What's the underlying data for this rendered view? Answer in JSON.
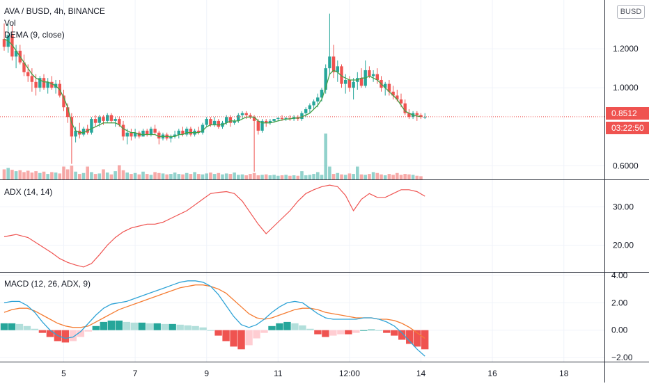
{
  "header": {
    "symbol_line": "AVA / BUSD, 4h, BINANCE",
    "vol_label": "Vol",
    "dema_label": "DEMA (9, close)",
    "currency_badge": "BUSD"
  },
  "price_badges": {
    "last_price": "0.8512",
    "countdown": "03:22:50"
  },
  "colors": {
    "up": "#26a69a",
    "down": "#ef5350",
    "dema": "#43a047",
    "adx": "#ef5350",
    "macd_line": "#2fa3d6",
    "signal_line": "#f57c32",
    "hist_up_strong": "#26a69a",
    "hist_up_weak": "#b2dfdb",
    "hist_down_strong": "#ef5350",
    "hist_down_weak": "#ffcdd2",
    "grid": "#f0f3fa",
    "axis_text": "#131722"
  },
  "chart_data": [
    {
      "type": "candlestick",
      "panel": "price",
      "title": "AVA / BUSD, 4h, BINANCE",
      "ylim": [
        0.53,
        1.45
      ],
      "y_ticks": [
        "1.2000",
        "1.0000",
        "0.6000"
      ],
      "x_ticks": [
        "5",
        "7",
        "9",
        "11",
        "12:00",
        "14",
        "16",
        "18"
      ],
      "x_tick_positions": [
        4,
        7,
        10,
        13,
        16,
        19,
        22,
        25
      ],
      "candles_per_day": 6,
      "last_price": 0.8512,
      "candles": [
        {
          "o": 1.25,
          "h": 1.33,
          "l": 1.19,
          "c": 1.21
        },
        {
          "o": 1.21,
          "h": 1.33,
          "l": 1.18,
          "c": 1.27
        },
        {
          "o": 1.27,
          "h": 1.32,
          "l": 1.14,
          "c": 1.16
        },
        {
          "o": 1.16,
          "h": 1.22,
          "l": 1.1,
          "c": 1.19
        },
        {
          "o": 1.19,
          "h": 1.22,
          "l": 1.12,
          "c": 1.13
        },
        {
          "o": 1.13,
          "h": 1.17,
          "l": 1.06,
          "c": 1.08
        },
        {
          "o": 1.08,
          "h": 1.12,
          "l": 1.03,
          "c": 1.06
        },
        {
          "o": 1.06,
          "h": 1.1,
          "l": 0.98,
          "c": 1.03
        },
        {
          "o": 1.03,
          "h": 1.07,
          "l": 0.96,
          "c": 1.0
        },
        {
          "o": 1.0,
          "h": 1.06,
          "l": 0.98,
          "c": 1.05
        },
        {
          "o": 1.05,
          "h": 1.07,
          "l": 0.99,
          "c": 1.0
        },
        {
          "o": 1.0,
          "h": 1.05,
          "l": 0.97,
          "c": 1.03
        },
        {
          "o": 1.03,
          "h": 1.06,
          "l": 0.99,
          "c": 1.0
        },
        {
          "o": 1.0,
          "h": 1.04,
          "l": 0.97,
          "c": 1.02
        },
        {
          "o": 1.02,
          "h": 1.04,
          "l": 0.95,
          "c": 0.96
        },
        {
          "o": 0.96,
          "h": 0.99,
          "l": 0.88,
          "c": 0.9
        },
        {
          "o": 0.9,
          "h": 0.92,
          "l": 0.82,
          "c": 0.85
        },
        {
          "o": 0.85,
          "h": 0.87,
          "l": 0.61,
          "c": 0.75
        },
        {
          "o": 0.75,
          "h": 0.8,
          "l": 0.72,
          "c": 0.78
        },
        {
          "o": 0.78,
          "h": 0.82,
          "l": 0.74,
          "c": 0.76
        },
        {
          "o": 0.76,
          "h": 0.8,
          "l": 0.75,
          "c": 0.79
        },
        {
          "o": 0.79,
          "h": 0.81,
          "l": 0.76,
          "c": 0.77
        },
        {
          "o": 0.77,
          "h": 0.85,
          "l": 0.76,
          "c": 0.84
        },
        {
          "o": 0.84,
          "h": 0.86,
          "l": 0.8,
          "c": 0.82
        },
        {
          "o": 0.82,
          "h": 0.86,
          "l": 0.8,
          "c": 0.85
        },
        {
          "o": 0.85,
          "h": 0.86,
          "l": 0.81,
          "c": 0.83
        },
        {
          "o": 0.83,
          "h": 0.87,
          "l": 0.82,
          "c": 0.86
        },
        {
          "o": 0.86,
          "h": 0.87,
          "l": 0.82,
          "c": 0.83
        },
        {
          "o": 0.83,
          "h": 0.85,
          "l": 0.8,
          "c": 0.84
        },
        {
          "o": 0.84,
          "h": 0.85,
          "l": 0.8,
          "c": 0.81
        },
        {
          "o": 0.81,
          "h": 0.83,
          "l": 0.73,
          "c": 0.75
        },
        {
          "o": 0.75,
          "h": 0.79,
          "l": 0.71,
          "c": 0.77
        },
        {
          "o": 0.77,
          "h": 0.79,
          "l": 0.73,
          "c": 0.75
        },
        {
          "o": 0.75,
          "h": 0.79,
          "l": 0.74,
          "c": 0.77
        },
        {
          "o": 0.77,
          "h": 0.78,
          "l": 0.74,
          "c": 0.75
        },
        {
          "o": 0.75,
          "h": 0.79,
          "l": 0.75,
          "c": 0.78
        },
        {
          "o": 0.78,
          "h": 0.79,
          "l": 0.75,
          "c": 0.76
        },
        {
          "o": 0.76,
          "h": 0.8,
          "l": 0.75,
          "c": 0.79
        },
        {
          "o": 0.79,
          "h": 0.81,
          "l": 0.76,
          "c": 0.77
        },
        {
          "o": 0.77,
          "h": 0.78,
          "l": 0.71,
          "c": 0.74
        },
        {
          "o": 0.74,
          "h": 0.77,
          "l": 0.73,
          "c": 0.76
        },
        {
          "o": 0.76,
          "h": 0.77,
          "l": 0.73,
          "c": 0.74
        },
        {
          "o": 0.74,
          "h": 0.76,
          "l": 0.72,
          "c": 0.75
        },
        {
          "o": 0.75,
          "h": 0.78,
          "l": 0.74,
          "c": 0.76
        },
        {
          "o": 0.76,
          "h": 0.79,
          "l": 0.74,
          "c": 0.78
        },
        {
          "o": 0.78,
          "h": 0.8,
          "l": 0.75,
          "c": 0.76
        },
        {
          "o": 0.76,
          "h": 0.8,
          "l": 0.75,
          "c": 0.79
        },
        {
          "o": 0.79,
          "h": 0.8,
          "l": 0.75,
          "c": 0.76
        },
        {
          "o": 0.76,
          "h": 0.79,
          "l": 0.75,
          "c": 0.78
        },
        {
          "o": 0.78,
          "h": 0.8,
          "l": 0.76,
          "c": 0.77
        },
        {
          "o": 0.77,
          "h": 0.82,
          "l": 0.76,
          "c": 0.81
        },
        {
          "o": 0.81,
          "h": 0.85,
          "l": 0.8,
          "c": 0.84
        },
        {
          "o": 0.84,
          "h": 0.85,
          "l": 0.8,
          "c": 0.81
        },
        {
          "o": 0.81,
          "h": 0.85,
          "l": 0.8,
          "c": 0.83
        },
        {
          "o": 0.83,
          "h": 0.84,
          "l": 0.79,
          "c": 0.8
        },
        {
          "o": 0.8,
          "h": 0.83,
          "l": 0.79,
          "c": 0.82
        },
        {
          "o": 0.82,
          "h": 0.86,
          "l": 0.81,
          "c": 0.85
        },
        {
          "o": 0.85,
          "h": 0.86,
          "l": 0.8,
          "c": 0.82
        },
        {
          "o": 0.82,
          "h": 0.84,
          "l": 0.81,
          "c": 0.83
        },
        {
          "o": 0.83,
          "h": 0.87,
          "l": 0.82,
          "c": 0.86
        },
        {
          "o": 0.86,
          "h": 0.88,
          "l": 0.84,
          "c": 0.87
        },
        {
          "o": 0.87,
          "h": 0.88,
          "l": 0.84,
          "c": 0.86
        },
        {
          "o": 0.86,
          "h": 0.87,
          "l": 0.84,
          "c": 0.85
        },
        {
          "o": 0.85,
          "h": 0.86,
          "l": 0.57,
          "c": 0.83
        },
        {
          "o": 0.83,
          "h": 0.84,
          "l": 0.76,
          "c": 0.78
        },
        {
          "o": 0.78,
          "h": 0.84,
          "l": 0.77,
          "c": 0.83
        },
        {
          "o": 0.83,
          "h": 0.84,
          "l": 0.8,
          "c": 0.82
        },
        {
          "o": 0.82,
          "h": 0.84,
          "l": 0.81,
          "c": 0.83
        },
        {
          "o": 0.83,
          "h": 0.84,
          "l": 0.82,
          "c": 0.84
        },
        {
          "o": 0.84,
          "h": 0.85,
          "l": 0.83,
          "c": 0.845
        },
        {
          "o": 0.845,
          "h": 0.86,
          "l": 0.83,
          "c": 0.84
        },
        {
          "o": 0.84,
          "h": 0.85,
          "l": 0.83,
          "c": 0.845
        },
        {
          "o": 0.845,
          "h": 0.86,
          "l": 0.83,
          "c": 0.84
        },
        {
          "o": 0.84,
          "h": 0.86,
          "l": 0.83,
          "c": 0.85
        },
        {
          "o": 0.85,
          "h": 0.86,
          "l": 0.83,
          "c": 0.84
        },
        {
          "o": 0.84,
          "h": 0.88,
          "l": 0.83,
          "c": 0.87
        },
        {
          "o": 0.87,
          "h": 0.9,
          "l": 0.85,
          "c": 0.89
        },
        {
          "o": 0.89,
          "h": 0.92,
          "l": 0.87,
          "c": 0.91
        },
        {
          "o": 0.91,
          "h": 0.94,
          "l": 0.89,
          "c": 0.93
        },
        {
          "o": 0.93,
          "h": 0.97,
          "l": 0.9,
          "c": 0.95
        },
        {
          "o": 0.95,
          "h": 1.0,
          "l": 0.93,
          "c": 0.99
        },
        {
          "o": 0.99,
          "h": 1.12,
          "l": 0.97,
          "c": 1.1
        },
        {
          "o": 1.1,
          "h": 1.38,
          "l": 1.07,
          "c": 1.16
        },
        {
          "o": 1.16,
          "h": 1.22,
          "l": 1.05,
          "c": 1.08
        },
        {
          "o": 1.08,
          "h": 1.14,
          "l": 1.03,
          "c": 1.11
        },
        {
          "o": 1.11,
          "h": 1.12,
          "l": 1.0,
          "c": 1.02
        },
        {
          "o": 1.02,
          "h": 1.07,
          "l": 0.97,
          "c": 1.04
        },
        {
          "o": 1.04,
          "h": 1.06,
          "l": 0.98,
          "c": 1.0
        },
        {
          "o": 1.0,
          "h": 1.05,
          "l": 0.94,
          "c": 1.03
        },
        {
          "o": 1.03,
          "h": 1.08,
          "l": 0.99,
          "c": 1.05
        },
        {
          "o": 1.05,
          "h": 1.1,
          "l": 1.0,
          "c": 1.01
        },
        {
          "o": 1.01,
          "h": 1.14,
          "l": 1.0,
          "c": 1.09
        },
        {
          "o": 1.09,
          "h": 1.11,
          "l": 1.05,
          "c": 1.06
        },
        {
          "o": 1.06,
          "h": 1.09,
          "l": 1.03,
          "c": 1.07
        },
        {
          "o": 1.07,
          "h": 1.1,
          "l": 1.02,
          "c": 1.04
        },
        {
          "o": 1.04,
          "h": 1.06,
          "l": 0.98,
          "c": 1.0
        },
        {
          "o": 1.0,
          "h": 1.03,
          "l": 0.96,
          "c": 1.02
        },
        {
          "o": 1.02,
          "h": 1.04,
          "l": 0.96,
          "c": 0.98
        },
        {
          "o": 0.98,
          "h": 1.01,
          "l": 0.94,
          "c": 0.96
        },
        {
          "o": 0.96,
          "h": 0.99,
          "l": 0.93,
          "c": 0.94
        },
        {
          "o": 0.94,
          "h": 0.97,
          "l": 0.9,
          "c": 0.92
        },
        {
          "o": 0.92,
          "h": 0.94,
          "l": 0.86,
          "c": 0.87
        },
        {
          "o": 0.87,
          "h": 0.89,
          "l": 0.84,
          "c": 0.85
        },
        {
          "o": 0.85,
          "h": 0.88,
          "l": 0.84,
          "c": 0.87
        },
        {
          "o": 0.87,
          "h": 0.88,
          "l": 0.83,
          "c": 0.86
        },
        {
          "o": 0.86,
          "h": 0.87,
          "l": 0.84,
          "c": 0.85
        },
        {
          "o": 0.85,
          "h": 0.87,
          "l": 0.84,
          "c": 0.8512
        }
      ],
      "volume": [
        0.22,
        0.25,
        0.21,
        0.18,
        0.2,
        0.16,
        0.19,
        0.15,
        0.18,
        0.14,
        0.17,
        0.12,
        0.16,
        0.15,
        0.13,
        0.28,
        0.22,
        0.3,
        0.17,
        0.12,
        0.14,
        0.28,
        0.16,
        0.12,
        0.13,
        0.22,
        0.15,
        0.11,
        0.18,
        0.31,
        0.2,
        0.15,
        0.12,
        0.14,
        0.11,
        0.17,
        0.12,
        0.1,
        0.16,
        0.14,
        0.13,
        0.11,
        0.12,
        0.15,
        0.12,
        0.11,
        0.14,
        0.12,
        0.16,
        0.12,
        0.11,
        0.13,
        0.15,
        0.12,
        0.14,
        0.11,
        0.13,
        0.12,
        0.15,
        0.1,
        0.11,
        0.09,
        0.12,
        0.14,
        0.09,
        0.1,
        0.11,
        0.09,
        0.1,
        0.08,
        0.09,
        0.1,
        0.08,
        0.09,
        0.08,
        0.18,
        0.09,
        0.1,
        0.12,
        0.16,
        0.1,
        1.0,
        0.28,
        0.12,
        0.14,
        0.11,
        0.1,
        0.13,
        0.12,
        0.28,
        0.11,
        0.1,
        0.12,
        0.16,
        0.14,
        0.11,
        0.09,
        0.12,
        0.1,
        0.14,
        0.1,
        0.12,
        0.11,
        0.1,
        0.08,
        0.07
      ],
      "dema": [
        1.25,
        1.24,
        1.22,
        1.19,
        1.16,
        1.13,
        1.1,
        1.07,
        1.05,
        1.04,
        1.03,
        1.03,
        1.02,
        1.01,
        0.99,
        0.95,
        0.9,
        0.82,
        0.78,
        0.77,
        0.77,
        0.78,
        0.79,
        0.8,
        0.81,
        0.82,
        0.82,
        0.82,
        0.82,
        0.81,
        0.79,
        0.78,
        0.77,
        0.77,
        0.76,
        0.76,
        0.76,
        0.76,
        0.76,
        0.75,
        0.75,
        0.75,
        0.75,
        0.75,
        0.76,
        0.76,
        0.77,
        0.77,
        0.77,
        0.77,
        0.78,
        0.8,
        0.81,
        0.81,
        0.81,
        0.81,
        0.82,
        0.83,
        0.83,
        0.83,
        0.84,
        0.85,
        0.85,
        0.85,
        0.83,
        0.82,
        0.82,
        0.82,
        0.825,
        0.83,
        0.835,
        0.84,
        0.84,
        0.845,
        0.845,
        0.85,
        0.86,
        0.87,
        0.89,
        0.91,
        0.94,
        1.0,
        1.07,
        1.09,
        1.08,
        1.06,
        1.05,
        1.04,
        1.04,
        1.04,
        1.05,
        1.05,
        1.06,
        1.05,
        1.04,
        1.02,
        1.0,
        0.98,
        0.96,
        0.94,
        0.91,
        0.88,
        0.87,
        0.86,
        0.855,
        0.852
      ]
    },
    {
      "type": "line",
      "panel": "adx",
      "title": "ADX (14, 14)",
      "ylim": [
        13,
        37
      ],
      "y_ticks": [
        "30.00",
        "20.00"
      ],
      "x": [
        0,
        3,
        6,
        9,
        12,
        14,
        16,
        18,
        20,
        22,
        24,
        26,
        28,
        30,
        32,
        34,
        36,
        38,
        40,
        42,
        44,
        46,
        48,
        50,
        52,
        54,
        56,
        58,
        60,
        62,
        64,
        66,
        68,
        70,
        72,
        74,
        76,
        78,
        80,
        82,
        84,
        86,
        88,
        90,
        92,
        94,
        96,
        98,
        100,
        102,
        104,
        106
      ],
      "values": [
        22.2,
        22.8,
        22,
        20,
        18,
        16.5,
        15.5,
        14.8,
        14.3,
        15.2,
        17.5,
        20,
        22,
        23.5,
        24.5,
        25,
        25.5,
        25.5,
        26,
        27,
        28,
        29,
        30.5,
        32,
        33.5,
        33.8,
        34,
        33.5,
        31.5,
        28.5,
        25.5,
        23,
        25,
        27,
        29,
        31.5,
        33.5,
        34.5,
        35.3,
        35.7,
        35.3,
        33,
        29,
        32,
        33.5,
        32.5,
        32.5,
        33.5,
        34.5,
        34.5,
        34,
        32.8
      ]
    },
    {
      "type": "macd",
      "panel": "macd",
      "title": "MACD (12, 26, ADX, 9)",
      "ylim": [
        -2.3,
        4.2
      ],
      "y_ticks": [
        "4.00",
        "2.00",
        "0.00",
        "−2.00"
      ],
      "macd_line": [
        2.0,
        2.1,
        2.1,
        1.8,
        1.3,
        0.6,
        0,
        -0.4,
        -0.6,
        -0.5,
        -0.1,
        0.5,
        1.1,
        1.6,
        1.9,
        2.0,
        2.1,
        2.3,
        2.5,
        2.7,
        2.9,
        3.1,
        3.3,
        3.5,
        3.6,
        3.6,
        3.5,
        3.2,
        2.6,
        1.8,
        1.0,
        0.4,
        0.2,
        0.4,
        0.8,
        1.3,
        1.7,
        2.0,
        2.1,
        2.0,
        1.6,
        1.2,
        0.9,
        0.8,
        0.8,
        0.8,
        0.8,
        0.9,
        0.9,
        0.8,
        0.6,
        0.3,
        -0.2,
        -0.8,
        -1.4,
        -1.9
      ],
      "signal_line": [
        1.3,
        1.5,
        1.6,
        1.6,
        1.4,
        1.1,
        0.8,
        0.5,
        0.3,
        0.2,
        0.2,
        0.3,
        0.6,
        0.9,
        1.2,
        1.5,
        1.7,
        1.9,
        2.1,
        2.3,
        2.5,
        2.7,
        2.9,
        3.1,
        3.2,
        3.3,
        3.3,
        3.2,
        3.0,
        2.7,
        2.2,
        1.7,
        1.2,
        0.9,
        0.8,
        0.9,
        1.1,
        1.3,
        1.5,
        1.6,
        1.6,
        1.5,
        1.3,
        1.2,
        1.1,
        1.0,
        0.9,
        0.9,
        0.9,
        0.8,
        0.8,
        0.7,
        0.5,
        0.2,
        -0.2,
        -0.6
      ],
      "histogram": [
        0.5,
        0.5,
        0.45,
        0.3,
        0.1,
        -0.2,
        -0.5,
        -0.8,
        -0.9,
        -0.8,
        -0.5,
        -0.1,
        0.3,
        0.6,
        0.7,
        0.7,
        0.6,
        0.55,
        0.55,
        0.5,
        0.5,
        0.45,
        0.45,
        0.4,
        0.35,
        0.3,
        0.2,
        0.0,
        -0.4,
        -0.8,
        -1.2,
        -1.4,
        -1.1,
        -0.6,
        -0.2,
        0.3,
        0.5,
        0.6,
        0.5,
        0.35,
        0.1,
        -0.3,
        -0.5,
        -0.4,
        -0.3,
        -0.3,
        -0.2,
        0.0,
        0.05,
        0.0,
        -0.2,
        -0.4,
        -0.7,
        -1.0,
        -1.2,
        -1.4
      ]
    }
  ]
}
